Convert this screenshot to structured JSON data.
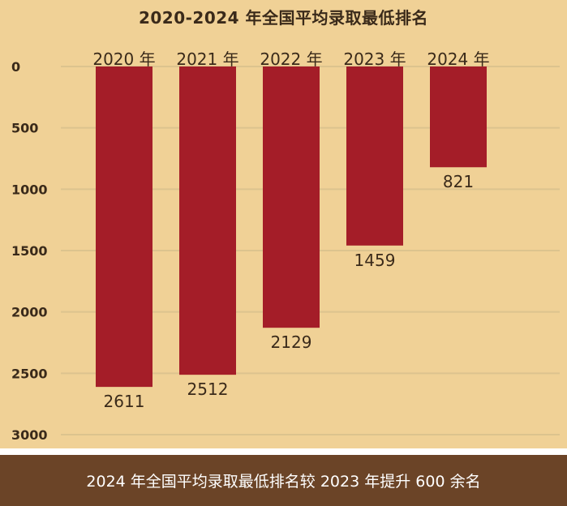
{
  "title": "2020-2024 年全国平均录取最低排名",
  "footer": "2024 年全国平均录取最低排名较 2023 年提升 600 余名",
  "colors": {
    "background": "#f0d196",
    "bar": "#a41d28",
    "gridline": "#dcc38e",
    "footer_bg": "#6b4427",
    "text": "#3a2a1a"
  },
  "chart_data": {
    "type": "bar",
    "orientation": "vertical",
    "y_axis_inverted": true,
    "x_axis_position": "top",
    "categories": [
      "2020 年",
      "2021 年",
      "2022 年",
      "2023 年",
      "2024 年"
    ],
    "values": [
      2611,
      2512,
      2129,
      1459,
      821
    ],
    "data_labels": [
      "2611",
      "2512",
      "2129",
      "1459",
      "821"
    ],
    "title": "2020-2024 年全国平均录取最低排名",
    "xlabel": "",
    "ylabel": "",
    "ylim": [
      0,
      3000
    ],
    "yticks": [
      0,
      500,
      1000,
      1500,
      2000,
      2500,
      3000
    ],
    "ytick_labels": [
      "0",
      "500",
      "1000",
      "1500",
      "2000",
      "2500",
      "3000"
    ],
    "grid": true,
    "legend": "none"
  }
}
